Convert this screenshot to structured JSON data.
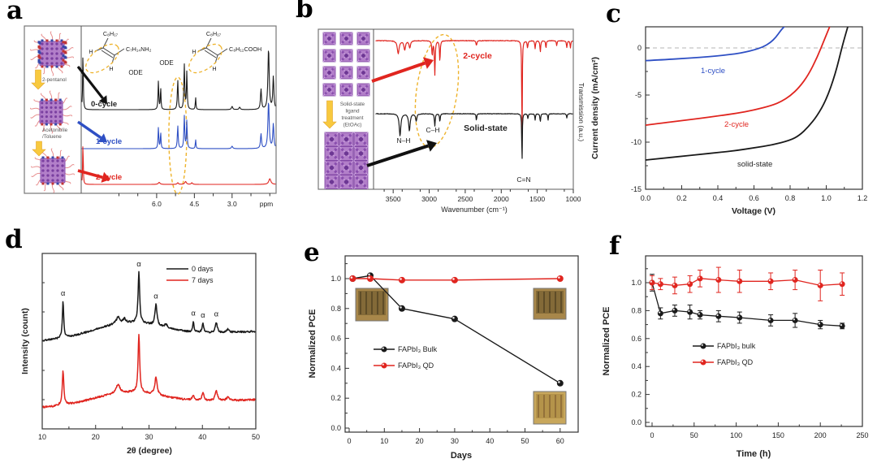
{
  "figure": {
    "panel_letters": {
      "a": "a",
      "b": "b",
      "c": "c",
      "d": "d",
      "e": "e",
      "f": "f"
    }
  },
  "colors": {
    "black_trace": "#1a1a1a",
    "blue_trace": "#2e4fc4",
    "red_trace": "#e0251f",
    "highlight_yellow": "#eeb32c",
    "arrow_yellow": "#f8c93e",
    "qd_purple": "#b27fc9",
    "qd_purple_dark": "#7a3fa0",
    "ligand_pink": "#e89090",
    "zero_line_gray": "#b5b5b5",
    "photo_tan": "#a8874a",
    "photo_tan_light": "#c8a75c"
  },
  "chart_data": [
    {
      "panel": "a",
      "type": "line",
      "kind": "1H NMR spectra of QD solutions after ligand purification cycles",
      "x_axis": {
        "unit_label": "ppm",
        "tick_values": [
          6.0,
          4.5,
          3.0
        ],
        "tick_labels": [
          "6.0",
          "4.5",
          "3.0"
        ],
        "range_ppm": [
          9.0,
          1.25
        ],
        "reversed": true
      },
      "sidebar": {
        "step1": "2-pentanol",
        "step2_line1": "Acetonitrile",
        "step2_line2": "/Toluene"
      },
      "structures": [
        {
          "top": "C₈H₁₇",
          "right": "C₇H₁₄NH₂",
          "h1": "H",
          "h2": "H"
        },
        {
          "top": "C₈H₁₇",
          "right": "C₈H₁₂COOH",
          "h1": "H",
          "h2": "H"
        }
      ],
      "ode_label": "ODE",
      "series": [
        {
          "name": "0-cycle",
          "color": "#1a1a1a",
          "baseline": 135,
          "peaks": [
            [
              8.93,
              72,
              0.03
            ],
            [
              5.93,
              35,
              0.035
            ],
            [
              5.84,
              27,
              0.03
            ],
            [
              5.16,
              36,
              0.04
            ],
            [
              4.9,
              55,
              0.04
            ],
            [
              4.8,
              46,
              0.035
            ],
            [
              4.45,
              15,
              0.03
            ],
            [
              3.0,
              4,
              0.06
            ],
            [
              2.7,
              3,
              0.06
            ],
            [
              1.85,
              25,
              0.05
            ],
            [
              1.55,
              75,
              0.06
            ],
            [
              1.36,
              40,
              0.05
            ]
          ]
        },
        {
          "name": "1-cycle",
          "color": "#2e4fc4",
          "baseline": 183,
          "peaks": [
            [
              5.93,
              26,
              0.035
            ],
            [
              5.84,
              20,
              0.03
            ],
            [
              5.16,
              28,
              0.04
            ],
            [
              4.9,
              40,
              0.04
            ],
            [
              4.8,
              34,
              0.035
            ],
            [
              4.45,
              11,
              0.03
            ],
            [
              3.0,
              3,
              0.06
            ],
            [
              1.85,
              18,
              0.05
            ],
            [
              1.55,
              58,
              0.06
            ],
            [
              1.36,
              30,
              0.05
            ]
          ]
        },
        {
          "name": "2-cycle",
          "color": "#e0251f",
          "baseline": 227,
          "peaks": [
            [
              8.93,
              55,
              0.025
            ],
            [
              5.9,
              2.5,
              0.08
            ],
            [
              5.16,
              2,
              0.06
            ],
            [
              4.85,
              3.5,
              0.08
            ],
            [
              4.6,
              2,
              0.06
            ],
            [
              1.5,
              7,
              0.1
            ]
          ]
        }
      ]
    },
    {
      "panel": "b",
      "type": "line",
      "kind": "FTIR transmission spectra",
      "x_axis": {
        "label": "Wavenumber (cm⁻¹)",
        "tick_values": [
          3500,
          3000,
          2500,
          2000,
          1500,
          1000
        ],
        "tick_labels": [
          "3500",
          "3000",
          "2500",
          "2000",
          "1500",
          "1000"
        ],
        "range": [
          3750,
          1000
        ],
        "reversed": true
      },
      "y_axis": {
        "label": "Transmission (a.u.)"
      },
      "inset": {
        "lines": [
          "Solid-state",
          "ligand",
          "treatment",
          "(EtOAc)"
        ]
      },
      "bond_labels": {
        "nh": "N–H",
        "ch": "C–H",
        "cn": "C=N"
      },
      "series": [
        {
          "name": "2-cycle",
          "color": "#e0251f",
          "baseline": 50,
          "dips": [
            [
              3430,
              16,
              30
            ],
            [
              3340,
              11,
              26
            ],
            [
              3270,
              9,
              22
            ],
            [
              2958,
              18,
              14
            ],
            [
              2922,
              42,
              13
            ],
            [
              2852,
              26,
              12
            ],
            [
              2345,
              6,
              16
            ],
            [
              1712,
              135,
              8
            ],
            [
              1635,
              9,
              14
            ],
            [
              1530,
              10,
              12
            ],
            [
              1458,
              14,
              12
            ],
            [
              1380,
              10,
              10
            ],
            [
              1230,
              6,
              12
            ],
            [
              1090,
              8,
              14
            ],
            [
              1040,
              9,
              12
            ]
          ]
        },
        {
          "name": "Solid-state",
          "color": "#1a1a1a",
          "baseline": 140,
          "dips": [
            [
              3405,
              27,
              26
            ],
            [
              3275,
              21,
              24
            ],
            [
              3180,
              9,
              20
            ],
            [
              2922,
              15,
              13
            ],
            [
              2852,
              10,
              12
            ],
            [
              2345,
              8,
              12
            ],
            [
              1712,
              67,
              8
            ],
            [
              1630,
              6,
              12
            ],
            [
              1530,
              8,
              10
            ],
            [
              1458,
              10,
              12
            ],
            [
              1350,
              8,
              10
            ],
            [
              1090,
              5,
              12
            ]
          ]
        }
      ]
    },
    {
      "panel": "c",
      "type": "line",
      "kind": "J-V curves of solar cells",
      "x_axis": {
        "label": "Voltage (V)",
        "tick_values": [
          0,
          0.2,
          0.4,
          0.6,
          0.8,
          1.0,
          1.2
        ],
        "tick_labels": [
          "0.0",
          "0.2",
          "0.4",
          "0.6",
          "0.8",
          "1.0",
          "1.2"
        ],
        "range": [
          0,
          1.2
        ]
      },
      "y_axis": {
        "label": "Current density (mA/cm²)",
        "tick_values": [
          0,
          -5,
          -10,
          -15
        ],
        "tick_labels": [
          "0",
          "-5",
          "-10",
          "-15"
        ],
        "range": [
          2.3,
          -15.1
        ]
      },
      "zero_line": true,
      "series": [
        {
          "name": "1-cycle",
          "color": "#2e4fc4",
          "points": [
            [
              0,
              -1.35
            ],
            [
              0.1,
              -1.25
            ],
            [
              0.2,
              -1.13
            ],
            [
              0.3,
              -1.0
            ],
            [
              0.4,
              -0.85
            ],
            [
              0.5,
              -0.62
            ],
            [
              0.55,
              -0.45
            ],
            [
              0.6,
              -0.22
            ],
            [
              0.65,
              0.1
            ],
            [
              0.69,
              0.55
            ],
            [
              0.72,
              1.1
            ],
            [
              0.75,
              1.9
            ],
            [
              0.77,
              2.3
            ]
          ]
        },
        {
          "name": "2-cycle",
          "color": "#e0251f",
          "points": [
            [
              0,
              -8.2
            ],
            [
              0.1,
              -7.95
            ],
            [
              0.2,
              -7.72
            ],
            [
              0.3,
              -7.48
            ],
            [
              0.4,
              -7.22
            ],
            [
              0.5,
              -6.95
            ],
            [
              0.6,
              -6.6
            ],
            [
              0.7,
              -6.1
            ],
            [
              0.75,
              -5.7
            ],
            [
              0.8,
              -5.1
            ],
            [
              0.85,
              -4.2
            ],
            [
              0.9,
              -2.9
            ],
            [
              0.95,
              -1.0
            ],
            [
              0.99,
              0.9
            ],
            [
              1.02,
              2.3
            ]
          ]
        },
        {
          "name": "solid-state",
          "color": "#1a1a1a",
          "points": [
            [
              0,
              -11.9
            ],
            [
              0.1,
              -11.7
            ],
            [
              0.2,
              -11.5
            ],
            [
              0.3,
              -11.3
            ],
            [
              0.4,
              -11.1
            ],
            [
              0.5,
              -10.9
            ],
            [
              0.6,
              -10.6
            ],
            [
              0.7,
              -10.3
            ],
            [
              0.8,
              -9.8
            ],
            [
              0.85,
              -9.3
            ],
            [
              0.9,
              -8.4
            ],
            [
              0.95,
              -7.2
            ],
            [
              1.0,
              -5.5
            ],
            [
              1.05,
              -2.8
            ],
            [
              1.09,
              0.3
            ],
            [
              1.12,
              2.3
            ]
          ]
        }
      ]
    },
    {
      "panel": "d",
      "type": "line",
      "kind": "XRD patterns",
      "x_axis": {
        "label": "2θ (degree)",
        "tick_values": [
          10,
          20,
          30,
          40,
          50
        ],
        "tick_labels": [
          "10",
          "20",
          "30",
          "40",
          "50"
        ],
        "range": [
          10,
          50
        ]
      },
      "y_axis": {
        "label": "Intensity (count)"
      },
      "legend": [
        {
          "label": "0 days",
          "color": "#1a1a1a"
        },
        {
          "label": "7 days",
          "color": "#e0251f"
        }
      ],
      "alpha_symbol": "α",
      "alpha_positions": [
        13.9,
        28.1,
        31.3,
        38.3,
        40.1,
        42.6
      ],
      "series": [
        {
          "name": "0 days",
          "color": "#1a1a1a",
          "baseline": 150,
          "tilt": -0.3,
          "hump": [
            26,
            18,
            9
          ],
          "peaks": [
            [
              13.9,
              45,
              0.3
            ],
            [
              24.2,
              8,
              0.8
            ],
            [
              25.4,
              5,
              0.5
            ],
            [
              28.1,
              62,
              0.35
            ],
            [
              31.3,
              26,
              0.45
            ],
            [
              33.2,
              4,
              0.7
            ],
            [
              38.3,
              13,
              0.3
            ],
            [
              40.1,
              11,
              0.35
            ],
            [
              42.6,
              13,
              0.45
            ],
            [
              44.8,
              4,
              0.6
            ]
          ]
        },
        {
          "name": "7 days",
          "color": "#e0251f",
          "baseline": 232,
          "tilt": -0.25,
          "hump": [
            26,
            15,
            9
          ],
          "peaks": [
            [
              13.9,
              42,
              0.35
            ],
            [
              24.2,
              11,
              0.8
            ],
            [
              28.1,
              72,
              0.35
            ],
            [
              31.3,
              22,
              0.5
            ],
            [
              38.3,
              6,
              0.45
            ],
            [
              40.1,
              10,
              0.45
            ],
            [
              42.6,
              12,
              0.55
            ],
            [
              44.8,
              4,
              0.7
            ]
          ]
        }
      ]
    },
    {
      "panel": "e",
      "type": "line",
      "kind": "Normalized PCE shelf stability",
      "x_axis": {
        "label": "Days",
        "tick_values": [
          0,
          10,
          20,
          30,
          40,
          50,
          60
        ],
        "tick_labels": [
          "0",
          "10",
          "20",
          "30",
          "40",
          "50",
          "60"
        ],
        "range": [
          -1.5,
          65
        ]
      },
      "y_axis": {
        "label": "Normalized PCE",
        "tick_values": [
          0,
          0.2,
          0.4,
          0.6,
          0.8,
          1.0
        ],
        "tick_labels": [
          "0.0",
          "0.2",
          "0.4",
          "0.6",
          "0.8",
          "1.0"
        ],
        "range": [
          -0.03,
          1.15
        ]
      },
      "series": [
        {
          "name": "FAPbI₃ Bulk",
          "color": "#1a1a1a",
          "x": [
            1,
            6,
            15,
            30,
            60
          ],
          "y": [
            1.0,
            1.02,
            0.8,
            0.73,
            0.3
          ]
        },
        {
          "name": "FAPbI₃ QD",
          "color": "#e0251f",
          "x": [
            1,
            6,
            15,
            30,
            60
          ],
          "y": [
            1.0,
            1.0,
            0.99,
            0.99,
            1.0
          ]
        }
      ],
      "insets": [
        {
          "pos": "top-left"
        },
        {
          "pos": "top-right"
        },
        {
          "pos": "bottom-right"
        }
      ]
    },
    {
      "panel": "f",
      "type": "line",
      "kind": "Normalized PCE operational stability",
      "x_axis": {
        "label": "Time (h)",
        "tick_values": [
          0,
          50,
          100,
          150,
          200,
          250
        ],
        "tick_labels": [
          "0",
          "50",
          "100",
          "150",
          "200",
          "250"
        ],
        "range": [
          -12,
          255
        ]
      },
      "y_axis": {
        "label": "Normalized PCE",
        "tick_values": [
          0,
          0.2,
          0.4,
          0.6,
          0.8,
          1.0
        ],
        "tick_labels": [
          "0.0",
          "0.2",
          "0.4",
          "0.6",
          "0.8",
          "1.0"
        ],
        "range": [
          -0.03,
          1.19
        ]
      },
      "series": [
        {
          "name": "FAPbI₃ bulk",
          "color": "#1a1a1a",
          "x": [
            0,
            10,
            27,
            45,
            57,
            79,
            104,
            141,
            170,
            200,
            226
          ],
          "y": [
            1.0,
            0.78,
            0.8,
            0.79,
            0.77,
            0.76,
            0.75,
            0.73,
            0.73,
            0.7,
            0.69
          ],
          "err": [
            0.06,
            0.04,
            0.04,
            0.05,
            0.03,
            0.04,
            0.04,
            0.04,
            0.05,
            0.03,
            0.02
          ]
        },
        {
          "name": "FAPbI₃ QD",
          "color": "#e0251f",
          "x": [
            0,
            10,
            27,
            45,
            57,
            79,
            104,
            141,
            170,
            200,
            226
          ],
          "y": [
            1.0,
            0.99,
            0.98,
            0.99,
            1.03,
            1.02,
            1.01,
            1.01,
            1.02,
            0.98,
            0.99
          ],
          "err": [
            0.05,
            0.04,
            0.06,
            0.06,
            0.06,
            0.09,
            0.08,
            0.06,
            0.07,
            0.11,
            0.08
          ]
        }
      ]
    }
  ]
}
